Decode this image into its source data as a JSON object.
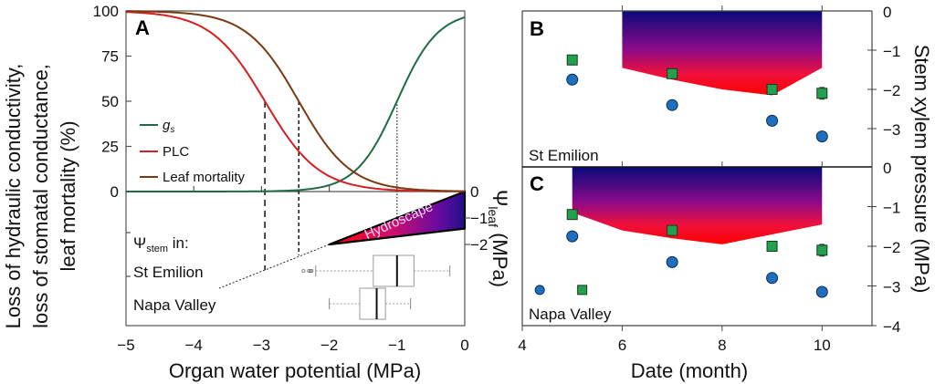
{
  "chart_data": [
    {
      "panel": "A",
      "type": "line",
      "xlabel": "Organ water potential (MPa)",
      "ylabel_lines": [
        "Loss of hydraulic conductivity,",
        "loss of stomatal conductance,",
        "leaf mortality (%)"
      ],
      "xlim": [
        -5,
        0
      ],
      "ylim": [
        0,
        100
      ],
      "xticks": [
        -5,
        -4,
        -3,
        -2,
        -1,
        0
      ],
      "xtick_labels": [
        "−5",
        "−4",
        "−3",
        "−2",
        "−1",
        "0"
      ],
      "yticks": [
        0,
        25,
        50,
        75,
        100
      ],
      "ytick_labels": [
        "0",
        "25",
        "50",
        "75",
        "100"
      ],
      "series": [
        {
          "name": "g_s",
          "label_main": "g",
          "label_sub": "s",
          "color": "#1e6b45",
          "type": "sigmoid-rising",
          "p50": -1.0,
          "slope": 3.3
        },
        {
          "name": "PLC",
          "label": "PLC",
          "color": "#d42020",
          "type": "sigmoid-falling",
          "p50": -2.95,
          "slope": 2.5
        },
        {
          "name": "Leaf mortality",
          "label": "Leaf mortality",
          "color": "#7a3a10",
          "type": "sigmoid-falling",
          "p50": -2.45,
          "slope": 2.6
        }
      ],
      "reference_lines": [
        {
          "x": -2.95,
          "style": "long-dash",
          "note": "PLC 50%"
        },
        {
          "x": -2.45,
          "style": "short-dash",
          "note": "Leaf mortality 50%"
        },
        {
          "x": -1.0,
          "style": "dotted",
          "note": "gs 50%"
        }
      ],
      "secondary_axis": {
        "label_main": "Ψ",
        "label_sub": "leaf",
        "label_unit": " (MPa)",
        "ticks": [
          0,
          -1,
          -2
        ],
        "tick_labels": [
          "0",
          "−1",
          "−2"
        ]
      },
      "hydroscape": {
        "label": "Hydroscape",
        "stem_range": [
          -2.0,
          0
        ],
        "leaf_at_stem_min": -2.0,
        "leaf_upper_at_stem_zero": 0,
        "leaf_lower_at_stem_zero": -1.4,
        "colors": [
          "#ff0000",
          "#c0107a",
          "#3a0aa0",
          "#1a1a8a"
        ]
      },
      "boxplot_heading_main": "Ψ",
      "boxplot_heading_sub": "stem",
      "boxplot_heading_rest": " in:",
      "boxplots": [
        {
          "site": "St Emilion",
          "whisker_low": -2.2,
          "q1": -1.35,
          "median": -1.0,
          "q3": -0.75,
          "whisker_high": -0.22,
          "outliers": [
            -2.38,
            -2.3,
            -2.28,
            -2.26
          ]
        },
        {
          "site": "Napa Valley",
          "whisker_low": -2.0,
          "q1": -1.55,
          "median": -1.3,
          "q3": -1.17,
          "whisker_high": -0.8,
          "outliers": []
        }
      ]
    },
    {
      "panel": "B",
      "type": "scatter",
      "site": "St Emilion",
      "xlim": [
        4,
        11
      ],
      "ylim": [
        -4,
        0
      ],
      "right_yticks": [
        0,
        -1,
        -2,
        -3
      ],
      "right_ytick_labels": [
        "0",
        "−1",
        "−2",
        "−3"
      ],
      "series": [
        {
          "name": "Psi_stem",
          "marker": "square",
          "color": "#22a050",
          "x": [
            5,
            7,
            9,
            10
          ],
          "y": [
            -1.25,
            -1.6,
            -2.0,
            -2.1
          ],
          "err": [
            0,
            0,
            0.1,
            0.15
          ]
        },
        {
          "name": "Psi_leaf",
          "marker": "circle",
          "color": "#1f6fbf",
          "x": [
            5,
            7,
            9,
            10
          ],
          "y": [
            -1.75,
            -2.4,
            -2.8,
            -3.2
          ]
        }
      ],
      "hydroscape_area": {
        "x": [
          6,
          7,
          8,
          9,
          10
        ],
        "lower": [
          -1.45,
          -1.75,
          -2.0,
          -2.15,
          -1.45
        ]
      }
    },
    {
      "panel": "C",
      "type": "scatter",
      "site": "Napa Valley",
      "xlabel": "Date (month)",
      "xticks": [
        4,
        6,
        8,
        10
      ],
      "xtick_labels": [
        "4",
        "6",
        "8",
        "10"
      ],
      "xlim": [
        4,
        11
      ],
      "ylim": [
        -4,
        0
      ],
      "right_yticks": [
        0,
        -1,
        -2,
        -3,
        -4
      ],
      "right_ytick_labels": [
        "0",
        "−1",
        "−2",
        "−3",
        "−4"
      ],
      "right_ylabel": "Stem xylem pressure (MPa)",
      "series": [
        {
          "name": "Psi_stem",
          "marker": "square",
          "color": "#22a050",
          "x": [
            5,
            7,
            9,
            10
          ],
          "y": [
            -1.2,
            -1.6,
            -2.0,
            -2.1
          ],
          "err": [
            0,
            0,
            0.12,
            0.15
          ]
        },
        {
          "name": "Psi_leaf",
          "marker": "circle",
          "color": "#1f6fbf",
          "x": [
            5,
            7,
            9,
            10
          ],
          "y": [
            -1.75,
            -2.4,
            -2.8,
            -3.15
          ]
        }
      ],
      "legend_markers": [
        {
          "marker": "circle",
          "x": 4.35,
          "y": -3.1
        },
        {
          "marker": "square",
          "x": 5.2,
          "y": -3.1
        }
      ],
      "hydroscape_area": {
        "x": [
          5,
          6,
          7,
          8,
          10
        ],
        "lower": [
          -1.15,
          -1.6,
          -1.8,
          -1.95,
          -1.45
        ]
      }
    }
  ]
}
